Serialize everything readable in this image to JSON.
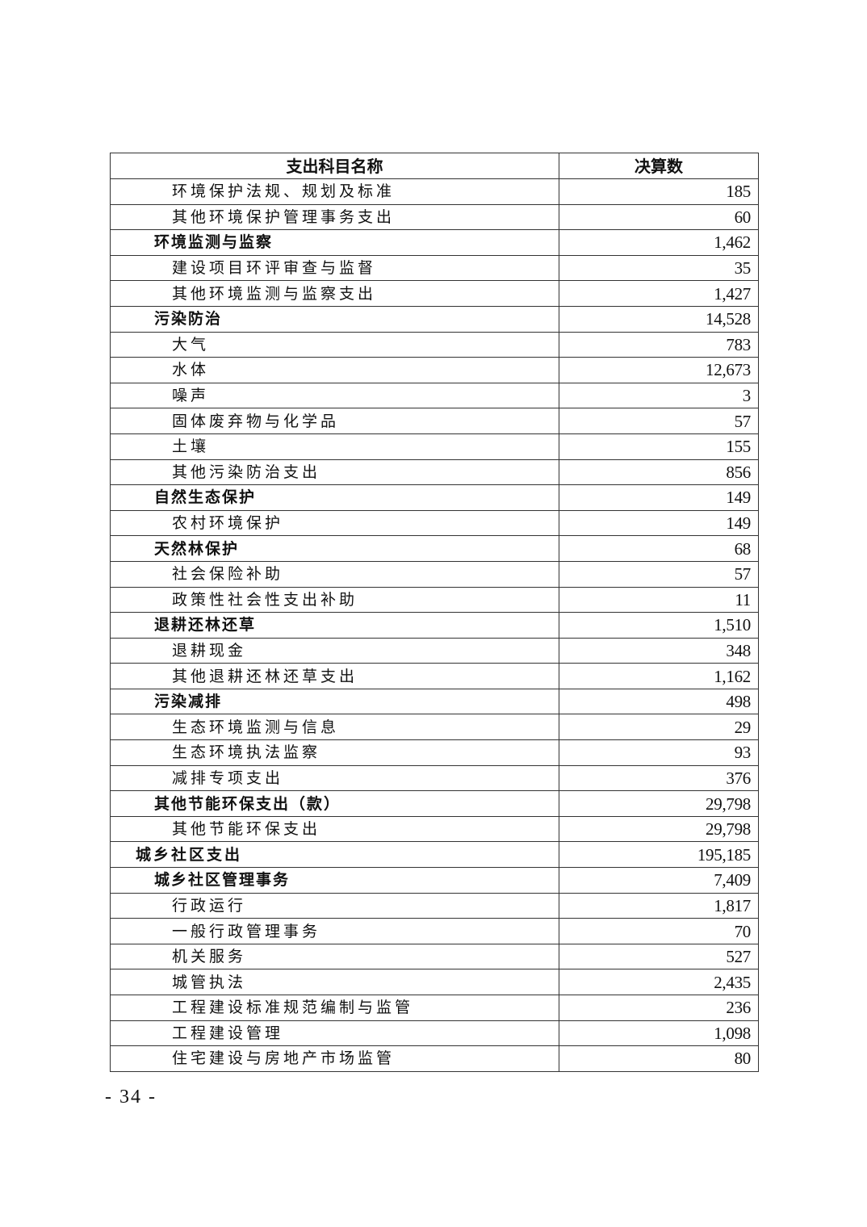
{
  "table": {
    "headers": [
      "支出科目名称",
      "决算数"
    ],
    "rows": [
      {
        "name": "环境保护法规、规划及标准",
        "value": "185",
        "level": 3
      },
      {
        "name": "其他环境保护管理事务支出",
        "value": "60",
        "level": 3
      },
      {
        "name": "环境监测与监察",
        "value": "1,462",
        "level": 2
      },
      {
        "name": "建设项目环评审查与监督",
        "value": "35",
        "level": 3
      },
      {
        "name": "其他环境监测与监察支出",
        "value": "1,427",
        "level": 3
      },
      {
        "name": "污染防治",
        "value": "14,528",
        "level": 2
      },
      {
        "name": "大气",
        "value": "783",
        "level": 3
      },
      {
        "name": "水体",
        "value": "12,673",
        "level": 3
      },
      {
        "name": "噪声",
        "value": "3",
        "level": 3
      },
      {
        "name": "固体废弃物与化学品",
        "value": "57",
        "level": 3
      },
      {
        "name": "土壤",
        "value": "155",
        "level": 3
      },
      {
        "name": "其他污染防治支出",
        "value": "856",
        "level": 3
      },
      {
        "name": "自然生态保护",
        "value": "149",
        "level": 2
      },
      {
        "name": "农村环境保护",
        "value": "149",
        "level": 3
      },
      {
        "name": "天然林保护",
        "value": "68",
        "level": 2
      },
      {
        "name": "社会保险补助",
        "value": "57",
        "level": 3
      },
      {
        "name": "政策性社会性支出补助",
        "value": "11",
        "level": 3
      },
      {
        "name": "退耕还林还草",
        "value": "1,510",
        "level": 2
      },
      {
        "name": "退耕现金",
        "value": "348",
        "level": 3
      },
      {
        "name": "其他退耕还林还草支出",
        "value": "1,162",
        "level": 3
      },
      {
        "name": "污染减排",
        "value": "498",
        "level": 2
      },
      {
        "name": "生态环境监测与信息",
        "value": "29",
        "level": 3
      },
      {
        "name": "生态环境执法监察",
        "value": "93",
        "level": 3
      },
      {
        "name": "减排专项支出",
        "value": "376",
        "level": 3
      },
      {
        "name": "其他节能环保支出（款）",
        "value": "29,798",
        "level": 2
      },
      {
        "name": "其他节能环保支出",
        "value": "29,798",
        "level": 3
      },
      {
        "name": "城乡社区支出",
        "value": "195,185",
        "level": 1
      },
      {
        "name": "城乡社区管理事务",
        "value": "7,409",
        "level": 2
      },
      {
        "name": "行政运行",
        "value": "1,817",
        "level": 3
      },
      {
        "name": "一般行政管理事务",
        "value": "70",
        "level": 3
      },
      {
        "name": "机关服务",
        "value": "527",
        "level": 3
      },
      {
        "name": "城管执法",
        "value": "2,435",
        "level": 3
      },
      {
        "name": "工程建设标准规范编制与监管",
        "value": "236",
        "level": 3
      },
      {
        "name": "工程建设管理",
        "value": "1,098",
        "level": 3
      },
      {
        "name": "住宅建设与房地产市场监管",
        "value": "80",
        "level": 3
      }
    ]
  },
  "footer": {
    "page_number": "- 34 -"
  }
}
